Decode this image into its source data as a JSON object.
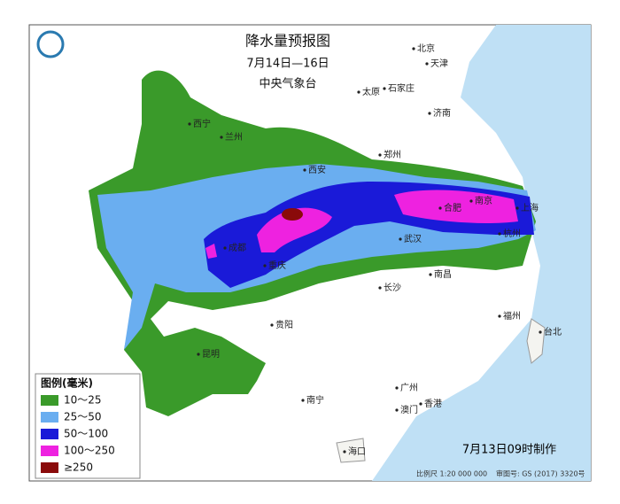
{
  "header": {
    "title": "降水量预报图",
    "period": "7月14日—16日",
    "issuer": "中央气象台"
  },
  "cities": [
    "北京",
    "天津",
    "太原",
    "石家庄",
    "济南",
    "西宁",
    "兰州",
    "郑州",
    "西安",
    "合肥",
    "南京",
    "上海",
    "杭州",
    "武汉",
    "成都",
    "重庆",
    "长沙",
    "南昌",
    "贵阳",
    "福州",
    "台北",
    "昆明",
    "南宁",
    "广州",
    "香港",
    "澳门",
    "海口"
  ],
  "legend": {
    "title": "图例(毫米)",
    "items": [
      "10～25",
      "25～50",
      "50～100",
      "100～250",
      "≥250"
    ]
  },
  "footer": {
    "issued": "7月13日09时制作",
    "scale": "比例尺 1:20 000 000",
    "review": "审图号: GS (2017) 3320号"
  }
}
